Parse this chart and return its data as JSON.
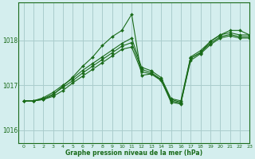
{
  "title": "Graphe pression niveau de la mer (hPa)",
  "background_color": "#d4eeee",
  "grid_color": "#aacccc",
  "line_color": "#1a6b1a",
  "xlim": [
    -0.5,
    23
  ],
  "ylim": [
    1015.7,
    1018.85
  ],
  "yticks": [
    1016,
    1017,
    1018
  ],
  "xticks": [
    0,
    1,
    2,
    3,
    4,
    5,
    6,
    7,
    8,
    9,
    10,
    11,
    12,
    13,
    14,
    15,
    16,
    17,
    18,
    19,
    20,
    21,
    22,
    23
  ],
  "series": [
    [
      1016.65,
      1016.65,
      1016.68,
      1016.75,
      1016.88,
      1017.05,
      1017.2,
      1017.35,
      1017.5,
      1017.65,
      1017.8,
      1017.85,
      1017.3,
      1017.25,
      1017.1,
      1016.65,
      1016.6,
      1017.55,
      1017.7,
      1017.9,
      1018.05,
      1018.1,
      1018.05,
      1018.05
    ],
    [
      1016.65,
      1016.65,
      1016.7,
      1016.8,
      1016.95,
      1017.1,
      1017.27,
      1017.42,
      1017.57,
      1017.72,
      1017.87,
      1017.95,
      1017.35,
      1017.28,
      1017.13,
      1016.68,
      1016.62,
      1017.6,
      1017.73,
      1017.93,
      1018.08,
      1018.13,
      1018.08,
      1018.08
    ],
    [
      1016.65,
      1016.65,
      1016.72,
      1016.84,
      1017.0,
      1017.15,
      1017.33,
      1017.48,
      1017.63,
      1017.78,
      1017.93,
      1018.05,
      1017.4,
      1017.32,
      1017.17,
      1016.7,
      1016.65,
      1017.63,
      1017.77,
      1017.97,
      1018.12,
      1018.17,
      1018.12,
      1018.12
    ],
    [
      1016.65,
      1016.65,
      1016.68,
      1016.78,
      1016.98,
      1017.18,
      1017.42,
      1017.62,
      1017.88,
      1018.08,
      1018.22,
      1018.58,
      1017.22,
      1017.25,
      1017.12,
      1016.62,
      1016.58,
      1017.6,
      1017.72,
      1017.98,
      1018.12,
      1018.22,
      1018.22,
      1018.12
    ]
  ]
}
